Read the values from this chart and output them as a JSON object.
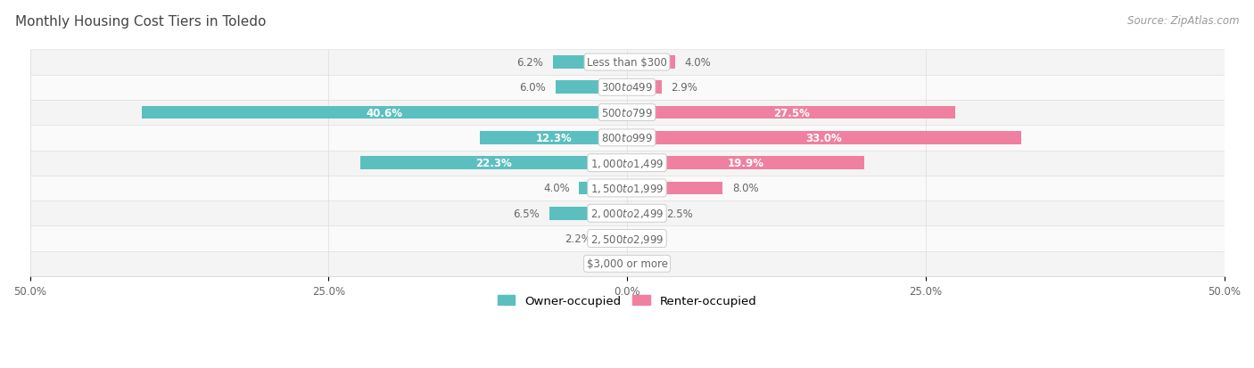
{
  "title": "Monthly Housing Cost Tiers in Toledo",
  "source": "Source: ZipAtlas.com",
  "categories": [
    "Less than $300",
    "$300 to $499",
    "$500 to $799",
    "$800 to $999",
    "$1,000 to $1,499",
    "$1,500 to $1,999",
    "$2,000 to $2,499",
    "$2,500 to $2,999",
    "$3,000 or more"
  ],
  "owner_values": [
    6.2,
    6.0,
    40.6,
    12.3,
    22.3,
    4.0,
    6.5,
    2.2,
    0.0
  ],
  "renter_values": [
    4.0,
    2.9,
    27.5,
    33.0,
    19.9,
    8.0,
    2.5,
    0.0,
    0.0
  ],
  "owner_color": "#5BBFBF",
  "renter_color": "#F080A0",
  "axis_max": 50.0,
  "label_fontsize": 8.5,
  "title_fontsize": 11,
  "source_fontsize": 8.5,
  "tick_fontsize": 8.5,
  "legend_fontsize": 9.5,
  "bar_height": 0.52,
  "text_color_dark": "#666666",
  "text_color_white": "#FFFFFF",
  "title_color": "#444444",
  "white_label_threshold": 12.0,
  "row_odd_color": "#F4F4F4",
  "row_even_color": "#FAFAFA"
}
